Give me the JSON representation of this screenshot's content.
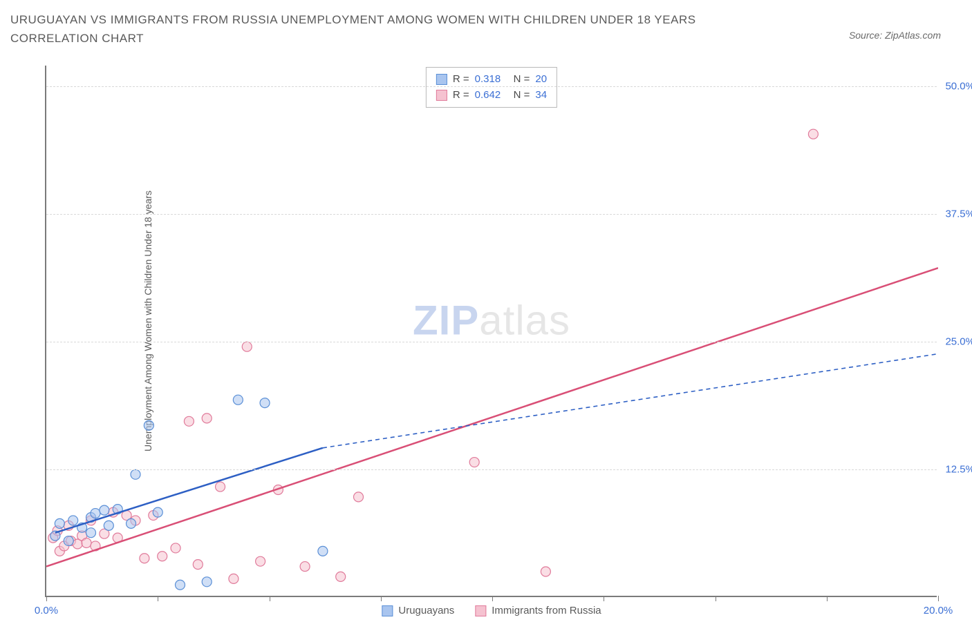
{
  "title": "URUGUAYAN VS IMMIGRANTS FROM RUSSIA UNEMPLOYMENT AMONG WOMEN WITH CHILDREN UNDER 18 YEARS CORRELATION CHART",
  "source": "Source: ZipAtlas.com",
  "y_axis_label": "Unemployment Among Women with Children Under 18 years",
  "watermark_zip": "ZIP",
  "watermark_atlas": "atlas",
  "chart": {
    "type": "scatter",
    "background_color": "#ffffff",
    "grid_color": "#d8d8d8",
    "axis_color": "#7a7a7a",
    "tick_label_color": "#3b6fd4",
    "tick_fontsize": 15,
    "label_fontsize": 14,
    "title_fontsize": 17,
    "xlim": [
      0,
      20
    ],
    "ylim": [
      0,
      52
    ],
    "x_ticks": [
      0,
      2.5,
      5,
      7.5,
      10,
      12.5,
      15,
      17.5,
      20
    ],
    "x_tick_labels": {
      "0": "0.0%",
      "20": "20.0%"
    },
    "y_gridlines": [
      12.5,
      25,
      37.5,
      50
    ],
    "y_tick_labels": {
      "12.5": "12.5%",
      "25": "25.0%",
      "37.5": "37.5%",
      "50": "50.0%"
    },
    "marker_radius": 7,
    "marker_opacity": 0.55
  },
  "series": [
    {
      "key": "uruguayans",
      "label": "Uruguayans",
      "marker_fill": "#a9c5ef",
      "marker_stroke": "#5a8fd6",
      "line_color": "#2d5fc4",
      "line_width": 2.5,
      "line_dash_extrapolate": "6,5",
      "R": "0.318",
      "N": "20",
      "trend": {
        "x1": 0.2,
        "y1": 6.3,
        "x2": 6.2,
        "y2": 14.6,
        "x2_ext": 20,
        "y2_ext": 23.8
      },
      "points": [
        [
          0.2,
          6.0
        ],
        [
          0.3,
          7.2
        ],
        [
          0.5,
          5.5
        ],
        [
          0.6,
          7.5
        ],
        [
          0.8,
          6.8
        ],
        [
          1.0,
          7.8
        ],
        [
          1.1,
          8.2
        ],
        [
          1.3,
          8.5
        ],
        [
          1.4,
          7.0
        ],
        [
          1.6,
          8.6
        ],
        [
          1.9,
          7.2
        ],
        [
          2.0,
          12.0
        ],
        [
          2.3,
          16.8
        ],
        [
          2.5,
          8.3
        ],
        [
          3.0,
          1.2
        ],
        [
          3.6,
          1.5
        ],
        [
          4.3,
          19.3
        ],
        [
          4.9,
          19.0
        ],
        [
          6.2,
          4.5
        ],
        [
          1.0,
          6.3
        ]
      ]
    },
    {
      "key": "russia",
      "label": "Immigrants from Russia",
      "marker_fill": "#f5c2d0",
      "marker_stroke": "#e07a9a",
      "line_color": "#d94f76",
      "line_width": 2.5,
      "R": "0.642",
      "N": "34",
      "trend": {
        "x1": 0.0,
        "y1": 3.0,
        "x2": 20,
        "y2": 32.2
      },
      "points": [
        [
          0.15,
          5.8
        ],
        [
          0.25,
          6.5
        ],
        [
          0.3,
          4.5
        ],
        [
          0.4,
          5.0
        ],
        [
          0.5,
          7.0
        ],
        [
          0.55,
          5.5
        ],
        [
          0.7,
          5.2
        ],
        [
          0.8,
          6.0
        ],
        [
          0.9,
          5.3
        ],
        [
          1.0,
          7.5
        ],
        [
          1.1,
          5.0
        ],
        [
          1.3,
          6.2
        ],
        [
          1.5,
          8.3
        ],
        [
          1.6,
          5.8
        ],
        [
          1.8,
          8.0
        ],
        [
          2.0,
          7.5
        ],
        [
          2.2,
          3.8
        ],
        [
          2.4,
          8.0
        ],
        [
          2.6,
          4.0
        ],
        [
          2.9,
          4.8
        ],
        [
          3.2,
          17.2
        ],
        [
          3.4,
          3.2
        ],
        [
          3.6,
          17.5
        ],
        [
          3.9,
          10.8
        ],
        [
          4.2,
          1.8
        ],
        [
          4.5,
          24.5
        ],
        [
          4.8,
          3.5
        ],
        [
          5.2,
          10.5
        ],
        [
          5.8,
          3.0
        ],
        [
          6.6,
          2.0
        ],
        [
          7.0,
          9.8
        ],
        [
          9.6,
          13.2
        ],
        [
          11.2,
          2.5
        ],
        [
          17.2,
          45.3
        ]
      ]
    }
  ],
  "legend_top": {
    "R_label": "R =",
    "N_label": "N ="
  }
}
